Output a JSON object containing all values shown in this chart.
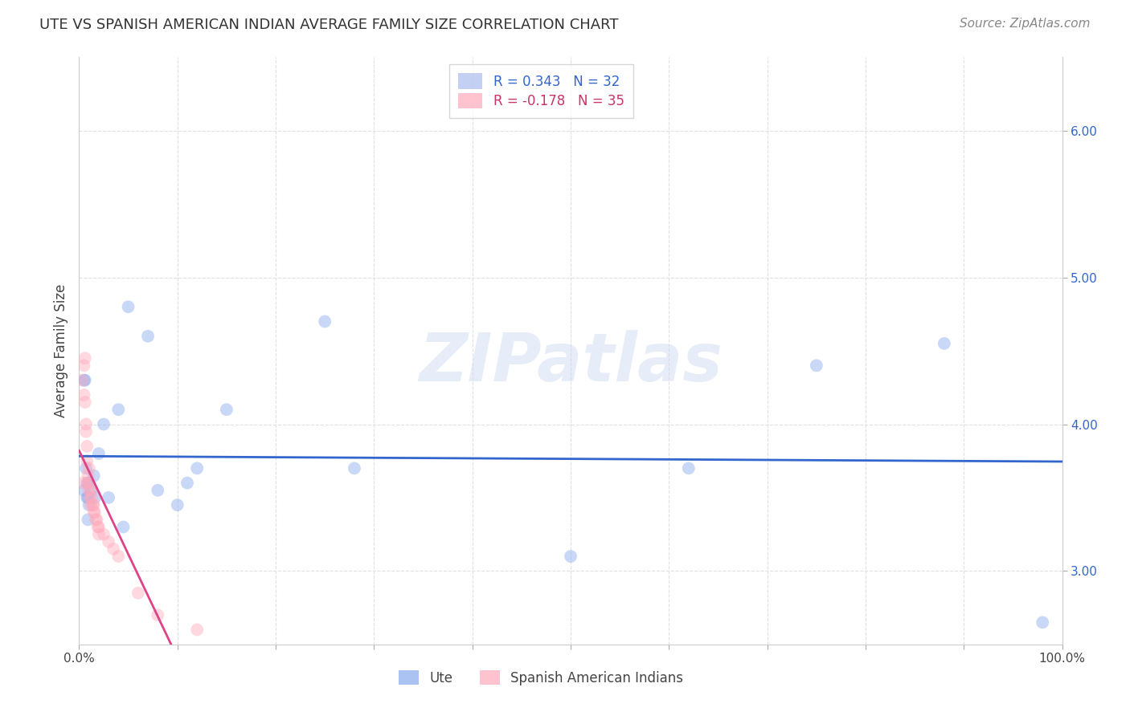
{
  "title": "UTE VS SPANISH AMERICAN INDIAN AVERAGE FAMILY SIZE CORRELATION CHART",
  "source": "Source: ZipAtlas.com",
  "ylabel": "Average Family Size",
  "watermark": "ZIPatlas",
  "xlim": [
    0,
    100.0
  ],
  "ylim": [
    2.5,
    6.5
  ],
  "xticks": [
    0.0,
    10,
    20,
    30,
    40,
    50,
    60,
    70,
    80,
    90,
    100.0
  ],
  "xticklabels": [
    "0.0%",
    "",
    "",
    "",
    "",
    "",
    "",
    "",
    "",
    "",
    "100.0%"
  ],
  "yticks": [
    3.0,
    4.0,
    5.0,
    6.0
  ],
  "legend1_label": "R = 0.343   N = 32",
  "legend2_label": "R = -0.178   N = 35",
  "legend1_color": "#aabbee",
  "legend2_color": "#ffaabb",
  "ute_color": "#88aaee",
  "sai_color": "#ffaabb",
  "trendline_ute_color": "#3366cc",
  "trendline_sai_color": "#dd4488",
  "trendline_sai_dashed_color": "#e8b8cc",
  "background_color": "#ffffff",
  "grid_color": "#dddddd",
  "ute_x": [
    0.5,
    0.5,
    0.6,
    0.7,
    0.8,
    0.8,
    0.9,
    0.9,
    1.0,
    1.0,
    1.2,
    1.5,
    1.6,
    2.0,
    2.5,
    3.0,
    4.0,
    5.0,
    8.0,
    10.0,
    11.0,
    12.0,
    15.0,
    25.0,
    28.0,
    50.0,
    62.0,
    75.0,
    88.0,
    98.0,
    7.0,
    4.5
  ],
  "ute_y": [
    4.3,
    3.55,
    4.3,
    3.7,
    3.6,
    3.5,
    3.5,
    3.35,
    3.6,
    3.45,
    3.55,
    3.65,
    3.5,
    3.8,
    4.0,
    3.5,
    4.1,
    4.8,
    3.55,
    3.45,
    3.6,
    3.7,
    4.1,
    4.7,
    3.7,
    3.1,
    3.7,
    4.4,
    4.55,
    2.65,
    4.6,
    3.3
  ],
  "sai_x": [
    0.3,
    0.4,
    0.5,
    0.5,
    0.6,
    0.6,
    0.7,
    0.7,
    0.8,
    0.8,
    0.9,
    0.9,
    1.0,
    1.0,
    1.0,
    1.1,
    1.2,
    1.2,
    1.3,
    1.4,
    1.5,
    1.5,
    1.6,
    1.7,
    1.8,
    1.9,
    2.0,
    2.0,
    2.5,
    3.0,
    3.5,
    4.0,
    6.0,
    8.0,
    12.0
  ],
  "sai_y": [
    4.3,
    3.6,
    4.4,
    4.2,
    4.45,
    4.15,
    3.95,
    4.0,
    3.85,
    3.75,
    3.65,
    3.6,
    3.7,
    3.6,
    3.55,
    3.5,
    3.55,
    3.45,
    3.5,
    3.45,
    3.45,
    3.4,
    3.4,
    3.35,
    3.35,
    3.3,
    3.3,
    3.25,
    3.25,
    3.2,
    3.15,
    3.1,
    2.85,
    2.7,
    2.6
  ],
  "marker_size": 130,
  "marker_alpha": 0.45,
  "trendline_ute_x_start": 0,
  "trendline_ute_x_end": 100,
  "trendline_sai_solid_end": 12,
  "trendline_sai_dashed_end": 50
}
